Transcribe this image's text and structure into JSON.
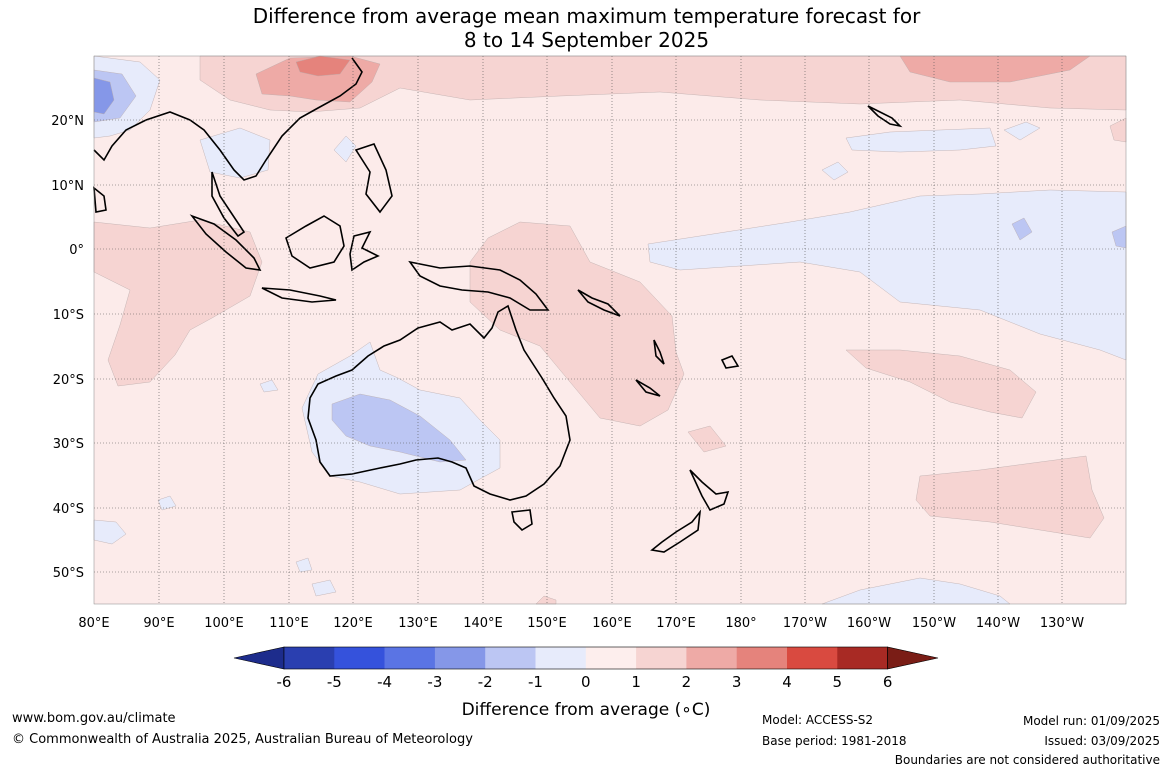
{
  "title_line1": "Difference from average mean maximum temperature forecast for",
  "title_line2": "8 to 14 September 2025",
  "axes": {
    "lat_labels": [
      "20°N",
      "10°N",
      "0°",
      "10°S",
      "20°S",
      "30°S",
      "40°S",
      "50°S"
    ],
    "lon_labels": [
      "80°E",
      "90°E",
      "100°E",
      "110°E",
      "120°E",
      "130°E",
      "140°E",
      "150°E",
      "160°E",
      "170°E",
      "180°",
      "170°W",
      "160°W",
      "150°W",
      "140°W",
      "130°W"
    ]
  },
  "colorbar": {
    "label": "Difference from average (∘C)",
    "tick_labels": [
      "-6",
      "-5",
      "-4",
      "-3",
      "-2",
      "-1",
      "0",
      "1",
      "2",
      "3",
      "4",
      "5",
      "6"
    ],
    "colors": [
      "#1d2c8c",
      "#2a3fb0",
      "#3552dc",
      "#5a74e4",
      "#8597e8",
      "#bcc6f3",
      "#e7ebfb",
      "#fdeeed",
      "#f6d4d2",
      "#eeaaa6",
      "#e5837c",
      "#d94a40",
      "#a82a24",
      "#7a1d16"
    ]
  },
  "anomaly_colors": {
    "ocean_base": "#fcebea",
    "warm_1": "#f6d4d2",
    "warm_2": "#eeaaa6",
    "warm_3": "#e5837c",
    "cool_1": "#e7ebfb",
    "cool_2": "#bcc6f3",
    "cool_3": "#8597e8"
  },
  "footer": {
    "website": "www.bom.gov.au/climate",
    "copyright": "© Commonwealth of Australia 2025, Australian Bureau of Meteorology",
    "model": "Model: ACCESS-S2",
    "base_period": "Base period: 1981-2018",
    "model_run": "Model run: 01/09/2025",
    "issued": "Issued: 03/09/2025",
    "disclaimer": "Boundaries are not considered authoritative"
  }
}
